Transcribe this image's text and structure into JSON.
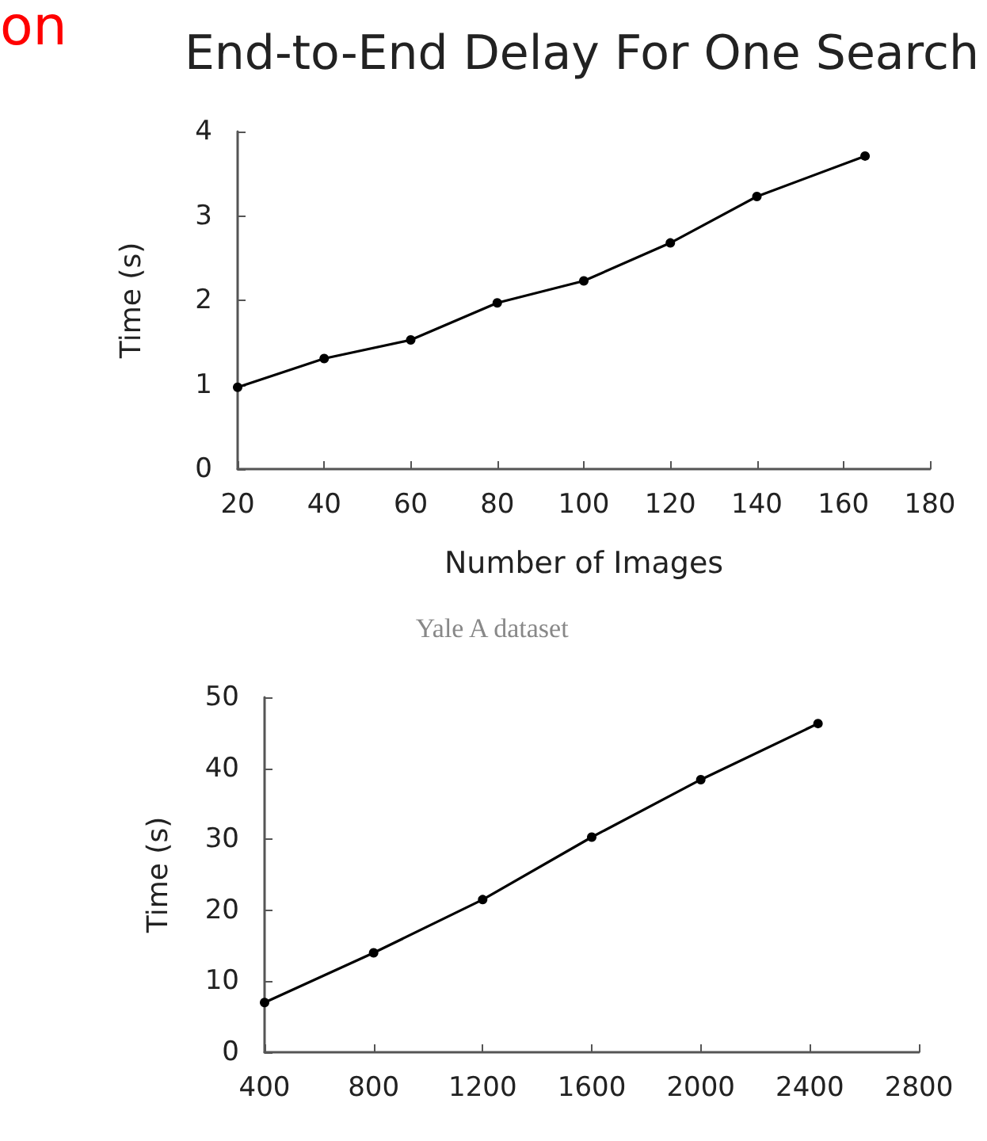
{
  "chart_data": [
    {
      "type": "line",
      "title": "End-to-End Delay For One Search",
      "xlabel": "Number of Images",
      "ylabel": "Time (s)",
      "annotations": [
        "on",
        "Yale A dataset"
      ],
      "x": [
        20,
        40,
        60,
        80,
        100,
        120,
        140,
        165
      ],
      "series": [
        {
          "color": "#000000",
          "values": [
            0.97,
            1.31,
            1.53,
            1.97,
            2.23,
            2.68,
            3.23,
            3.71
          ]
        }
      ],
      "xlim": [
        20,
        180
      ],
      "xticks": [
        20,
        40,
        60,
        80,
        100,
        120,
        140,
        160,
        180
      ],
      "ylim": [
        0,
        4
      ],
      "yticks": [
        0,
        1,
        2,
        3,
        4
      ],
      "grid": false,
      "marker": "circle",
      "line_style": "solid"
    },
    {
      "type": "line",
      "ylabel": "Time (s)",
      "x": [
        400,
        800,
        1200,
        1600,
        2000,
        2430
      ],
      "series": [
        {
          "color": "#000000",
          "values": [
            7.0,
            14.0,
            21.5,
            30.3,
            38.4,
            46.3
          ]
        }
      ],
      "xlim": [
        400,
        2800
      ],
      "xticks": [
        400,
        800,
        1200,
        1600,
        2000,
        2400,
        2800
      ],
      "ylim": [
        0,
        50
      ],
      "yticks": [
        0,
        10,
        20,
        30,
        40,
        50
      ],
      "grid": false,
      "marker": "circle",
      "line_style": "solid"
    }
  ]
}
